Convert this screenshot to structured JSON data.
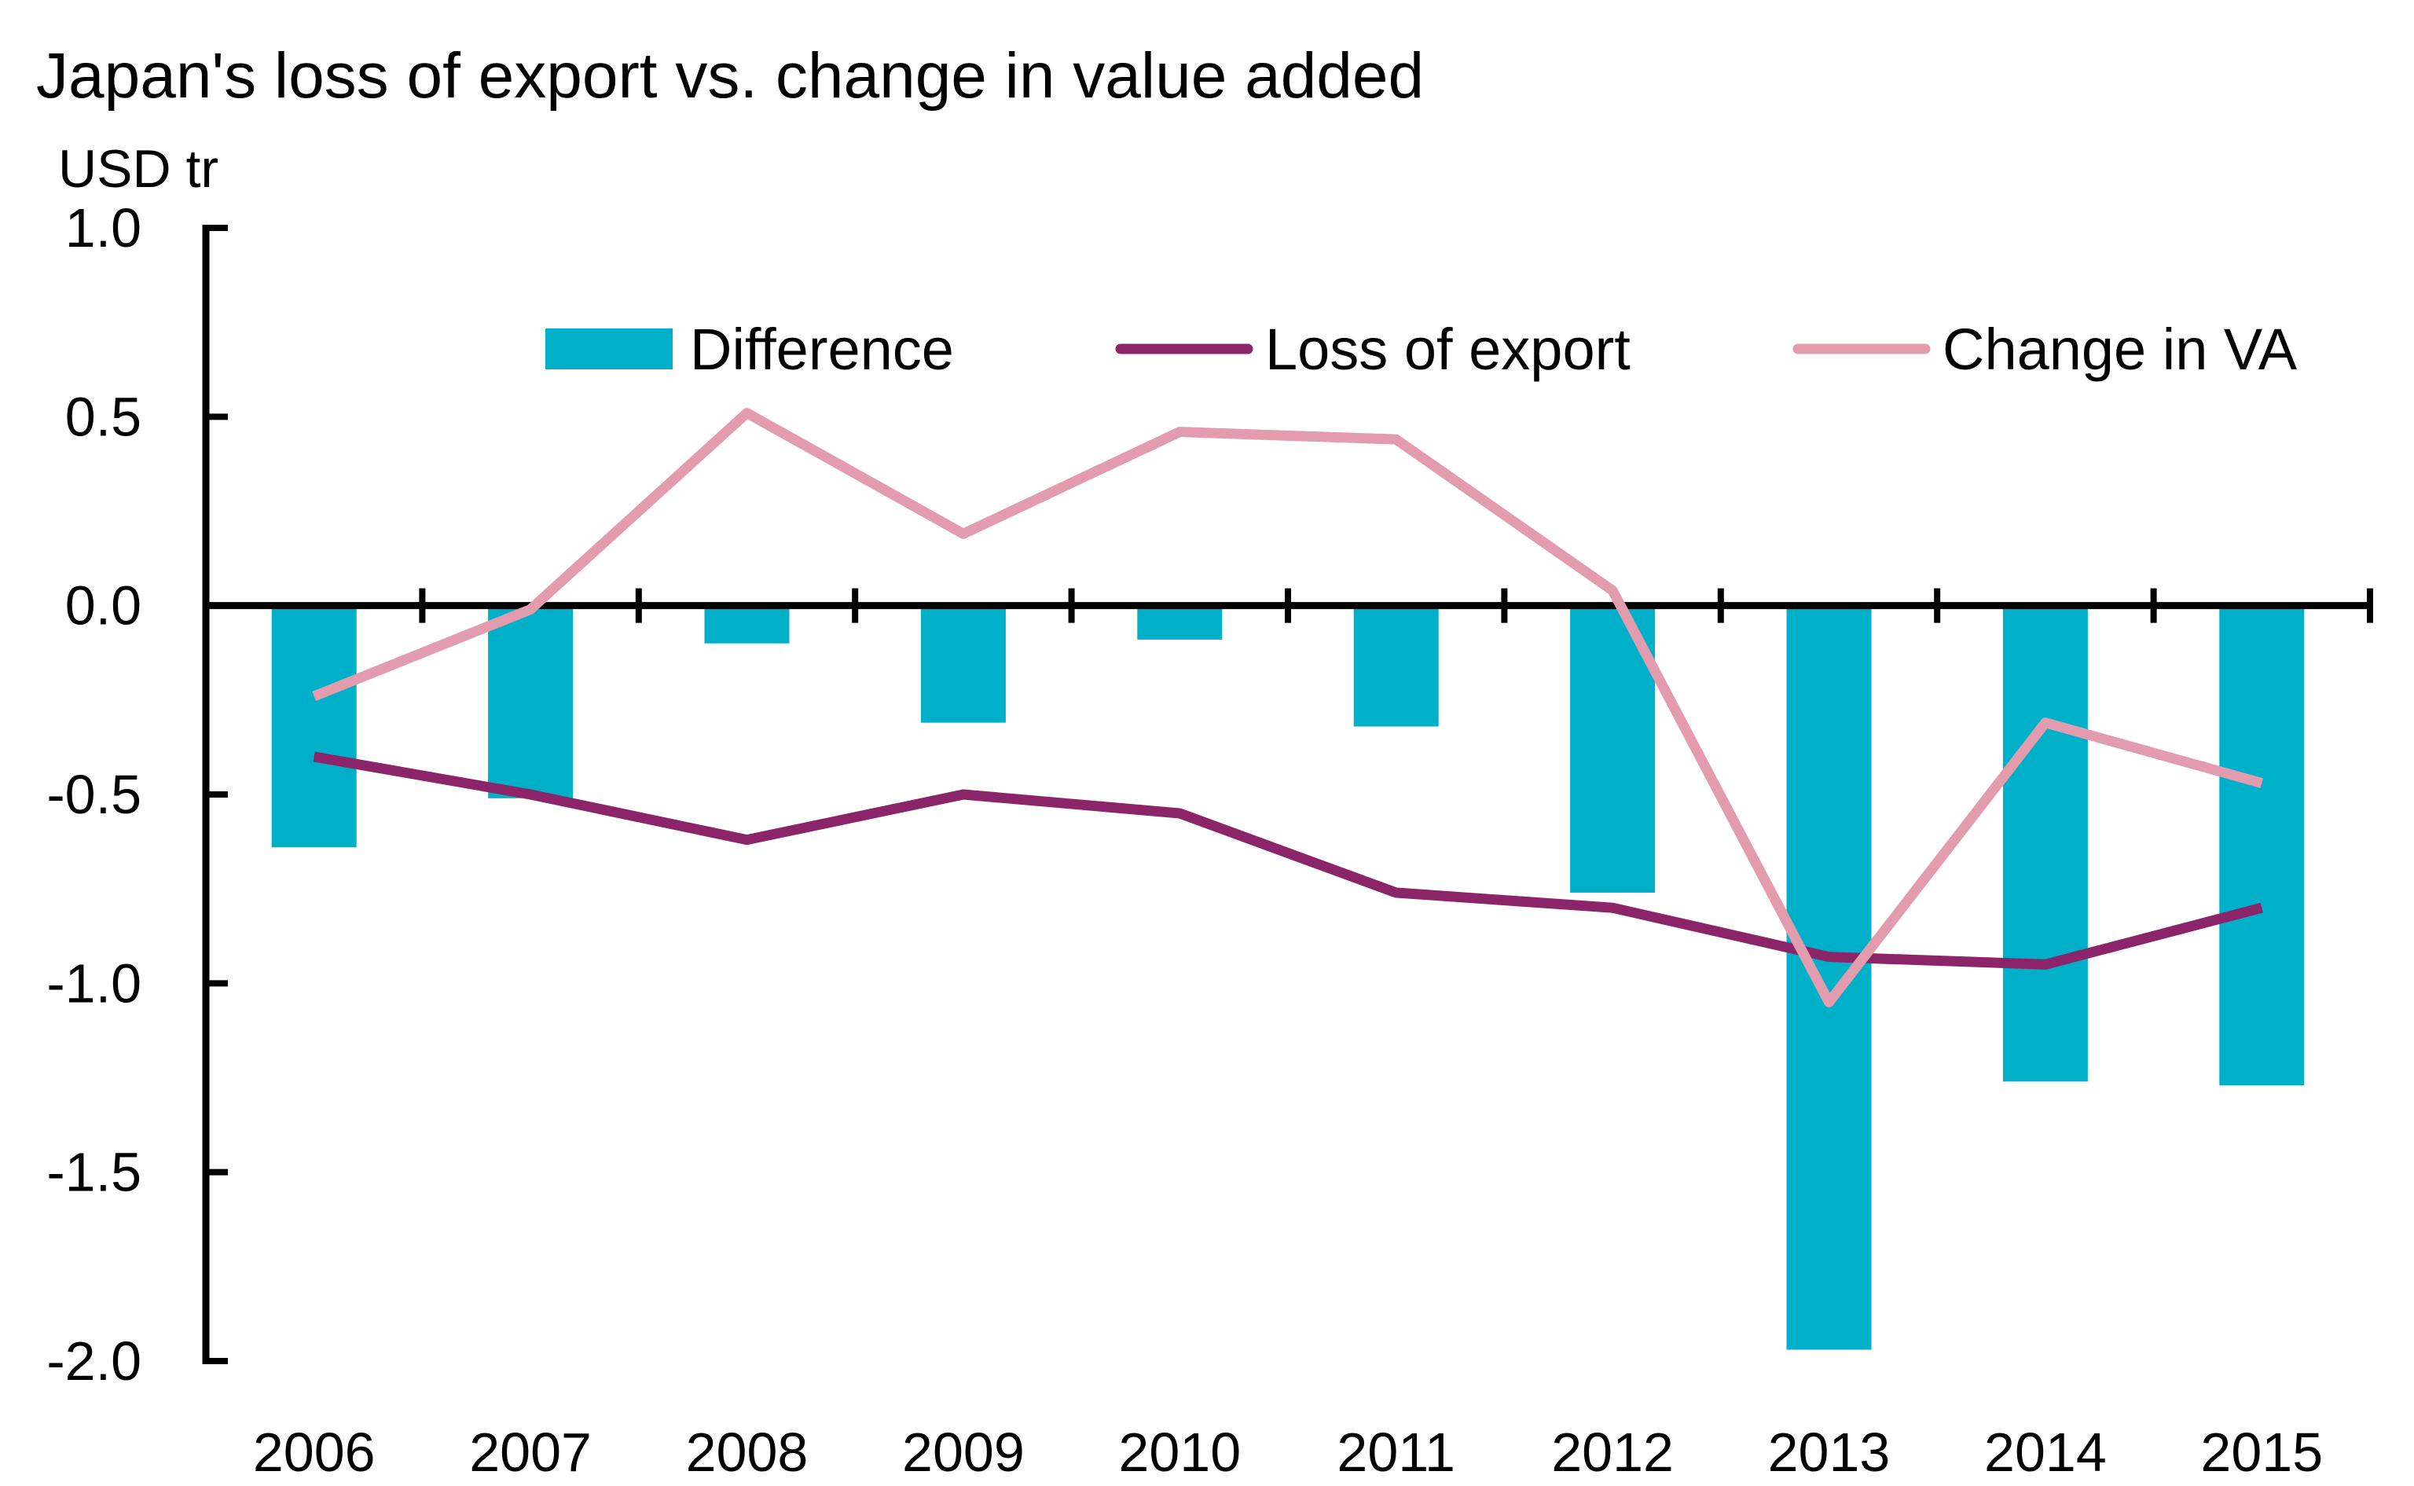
{
  "chart_data": {
    "type": "bar",
    "title": "Japan's loss of export vs. change in value added",
    "ylabel": "USD tr",
    "xlabel": "",
    "ylim": [
      -2.0,
      1.0
    ],
    "yticks": [
      "1.0",
      "0.5",
      "0.0",
      "-0.5",
      "-1.0",
      "-1.5",
      "-2.0"
    ],
    "ytick_values": [
      1.0,
      0.5,
      0.0,
      -0.5,
      -1.0,
      -1.5,
      -2.0
    ],
    "categories": [
      "2006",
      "2007",
      "2008",
      "2009",
      "2010",
      "2011",
      "2012",
      "2013",
      "2014",
      "2015"
    ],
    "grid": false,
    "legend_position": "top",
    "series": [
      {
        "name": "Difference",
        "type": "bar",
        "color": "#00B0C8",
        "values": [
          -0.64,
          -0.51,
          -0.1,
          -0.31,
          -0.09,
          -0.32,
          -0.76,
          -1.97,
          -1.26,
          -1.27
        ]
      },
      {
        "name": "Loss of export",
        "type": "line",
        "color": "#8B2468",
        "values": [
          -0.4,
          -0.5,
          -0.62,
          -0.5,
          -0.55,
          -0.76,
          -0.8,
          -0.93,
          -0.95,
          -0.8
        ]
      },
      {
        "name": "Change in VA",
        "type": "line",
        "color": "#E39BAE",
        "values": [
          -0.24,
          -0.01,
          0.51,
          0.19,
          0.46,
          0.44,
          0.04,
          -1.05,
          -0.31,
          -0.47
        ]
      }
    ]
  }
}
